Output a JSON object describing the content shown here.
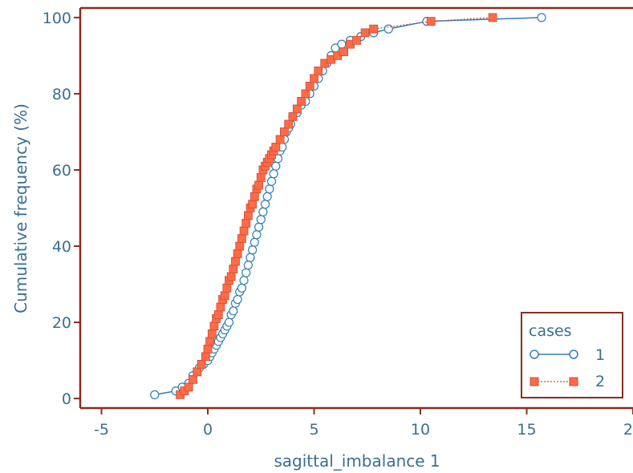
{
  "colors": {
    "frame": "#8b2d1e",
    "text": "#3a6f93",
    "series1": "#2f7fb5",
    "series2": "#ff6a47",
    "series2_line": "#c8503a"
  },
  "chart_data": {
    "type": "scatter",
    "xlabel": "sagittal_imbalance 1",
    "ylabel": "Cumulative frequency (%)",
    "xlim": [
      -6,
      20
    ],
    "ylim": [
      -2.5,
      102.5
    ],
    "xticks": [
      "-5",
      "0",
      "5",
      "10",
      "15",
      "20"
    ],
    "yticks": [
      "0",
      "20",
      "40",
      "60",
      "80",
      "100"
    ],
    "grid": false,
    "legend": {
      "title": "cases",
      "position": "bottom-right",
      "entries": [
        "1",
        "2"
      ]
    },
    "series": [
      {
        "name": "1",
        "marker": "circle-open",
        "x": [
          -2.5,
          -1.5,
          -1.2,
          -0.9,
          -0.7,
          -0.5,
          -0.4,
          -0.2,
          0.0,
          0.1,
          0.2,
          0.3,
          0.4,
          0.5,
          0.6,
          0.7,
          0.8,
          0.9,
          1.0,
          1.1,
          1.2,
          1.3,
          1.4,
          1.5,
          1.6,
          1.7,
          1.8,
          1.9,
          2.0,
          2.1,
          2.2,
          2.3,
          2.4,
          2.5,
          2.6,
          2.7,
          2.8,
          2.9,
          3.0,
          3.1,
          3.2,
          3.3,
          3.4,
          3.5,
          3.6,
          3.7,
          3.8,
          3.9,
          4.0,
          4.2,
          4.4,
          4.6,
          4.8,
          5.0,
          5.2,
          5.4,
          5.6,
          5.8,
          6.0,
          6.3,
          6.7,
          7.2,
          7.8,
          8.5,
          10.3,
          15.7
        ],
        "y": [
          1,
          2,
          3,
          4,
          6,
          7,
          8,
          9,
          10,
          11,
          12,
          13,
          14,
          15,
          16,
          17,
          18,
          19,
          20,
          22,
          23,
          25,
          26,
          28,
          29,
          31,
          33,
          35,
          37,
          39,
          41,
          43,
          45,
          47,
          49,
          51,
          53,
          55,
          57,
          59,
          61,
          63,
          65,
          66,
          68,
          70,
          71,
          72,
          74,
          75,
          77,
          78,
          80,
          82,
          84,
          86,
          88,
          90,
          92,
          93,
          94,
          95,
          96,
          97,
          99,
          100
        ]
      },
      {
        "name": "2",
        "marker": "square-filled",
        "x": [
          -1.3,
          -1.1,
          -0.9,
          -0.7,
          -0.5,
          -0.3,
          -0.1,
          0.0,
          0.1,
          0.2,
          0.3,
          0.4,
          0.5,
          0.6,
          0.7,
          0.8,
          0.9,
          1.0,
          1.1,
          1.2,
          1.3,
          1.4,
          1.5,
          1.6,
          1.7,
          1.8,
          1.9,
          2.0,
          2.1,
          2.2,
          2.3,
          2.4,
          2.5,
          2.6,
          2.7,
          2.8,
          2.9,
          3.0,
          3.1,
          3.2,
          3.4,
          3.6,
          3.8,
          4.0,
          4.2,
          4.4,
          4.6,
          4.8,
          5.0,
          5.2,
          5.5,
          5.8,
          6.1,
          6.4,
          6.7,
          7.0,
          7.4,
          7.8,
          10.5,
          13.4
        ],
        "y": [
          1,
          2,
          3,
          5,
          7,
          9,
          11,
          13,
          15,
          17,
          19,
          21,
          22,
          24,
          26,
          27,
          29,
          31,
          32,
          34,
          36,
          38,
          40,
          42,
          44,
          46,
          48,
          50,
          51,
          53,
          55,
          56,
          58,
          60,
          61,
          62,
          63,
          64,
          65,
          66,
          68,
          70,
          72,
          74,
          76,
          78,
          80,
          82,
          84,
          86,
          88,
          89,
          90,
          91,
          93,
          94,
          96,
          97,
          99,
          100
        ]
      }
    ]
  }
}
